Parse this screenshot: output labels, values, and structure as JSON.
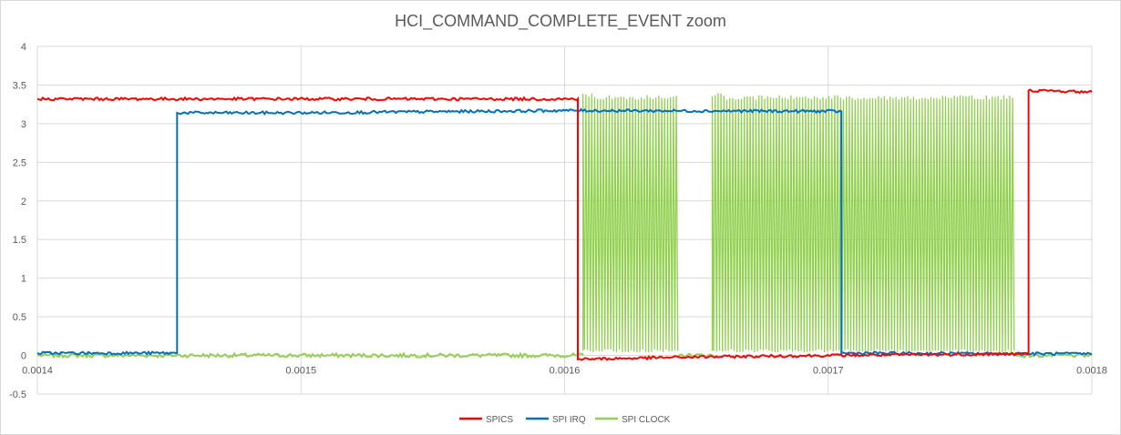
{
  "chart_data": {
    "type": "line",
    "title": "HCI_COMMAND_COMPLETE_EVENT zoom",
    "xlabel": "",
    "ylabel": "",
    "xlim": [
      0.0014,
      0.0018
    ],
    "ylim": [
      -0.5,
      4
    ],
    "x_ticks": [
      0.0014,
      0.0015,
      0.0016,
      0.0017,
      0.0018
    ],
    "x_tick_labels": [
      "0.0014",
      "0.0015",
      "0.0016",
      "0.0017",
      "0.0018"
    ],
    "y_ticks": [
      -0.5,
      0,
      0.5,
      1,
      1.5,
      2,
      2.5,
      3,
      3.5,
      4
    ],
    "y_tick_labels": [
      "-0.5",
      "0",
      "0.5",
      "1",
      "1.5",
      "2",
      "2.5",
      "3",
      "3.5",
      "4"
    ],
    "grid": true,
    "legend_position": "bottom",
    "series": [
      {
        "name": "SPICS",
        "color": "#ff0000",
        "points": [
          [
            0.0014,
            3.32
          ],
          [
            0.001605,
            3.32
          ],
          [
            0.001605,
            -0.05
          ],
          [
            0.00165,
            -0.02
          ],
          [
            0.0017,
            0.0
          ],
          [
            0.001776,
            0.02
          ],
          [
            0.001776,
            3.43
          ],
          [
            0.0018,
            3.41
          ]
        ]
      },
      {
        "name": "SPI IRQ",
        "color": "#0070c0",
        "points": [
          [
            0.0014,
            0.03
          ],
          [
            0.001453,
            0.03
          ],
          [
            0.001453,
            3.14
          ],
          [
            0.0015,
            3.14
          ],
          [
            0.0016,
            3.17
          ],
          [
            0.001705,
            3.16
          ],
          [
            0.001705,
            0.03
          ],
          [
            0.0018,
            0.02
          ]
        ]
      },
      {
        "name": "SPI CLOCK",
        "color": "#92d050",
        "baseline": 0.0,
        "burst_low": 0.06,
        "burst_high": 3.34,
        "bursts": [
          [
            0.001607,
            0.001643
          ],
          [
            0.001656,
            0.001771
          ]
        ],
        "xlim": [
          0.0014,
          0.0018
        ]
      }
    ]
  }
}
